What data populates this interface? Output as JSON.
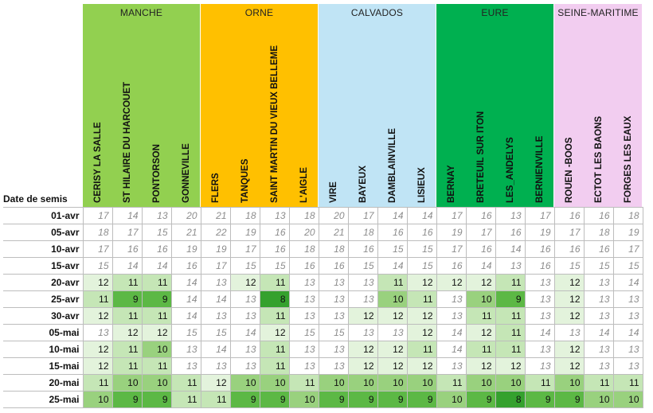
{
  "date_header": "Date de semis",
  "regions": [
    {
      "name": "MANCHE",
      "color": "#92d050",
      "stations": [
        "CERISY LA SALLE",
        "ST HILAIRE DU HARCOUET",
        "PONTORSON",
        "GONNEVILLE"
      ]
    },
    {
      "name": "ORNE",
      "color": "#ffc000",
      "stations": [
        "FLERS",
        "TANQUES",
        "SAINT MARTIN DU VIEUX BELLEME",
        "L'AIGLE"
      ]
    },
    {
      "name": "CALVADOS",
      "color": "#c0e4f5",
      "stations": [
        "VIRE",
        "BAYEUX",
        "DAMBLAINVILLE",
        "LISIEUX"
      ]
    },
    {
      "name": "EURE",
      "color": "#00b050",
      "stations": [
        "BERNAY",
        "BRETEUIL SUR ITON",
        "LES_ANDELYS",
        "BERNIENVILLE"
      ]
    },
    {
      "name": "SEINE-MARITIME",
      "color": "#f2cdf0",
      "stations": [
        "ROUEN -BOOS",
        "ECTOT LES BAONS",
        "FORGES LES EAUX"
      ]
    }
  ],
  "rows": [
    {
      "date": "01-avr",
      "values": [
        17,
        14,
        13,
        20,
        21,
        18,
        13,
        18,
        20,
        17,
        14,
        14,
        17,
        16,
        13,
        17,
        16,
        16,
        18
      ]
    },
    {
      "date": "05-avr",
      "values": [
        18,
        17,
        15,
        21,
        22,
        19,
        16,
        20,
        21,
        18,
        16,
        16,
        19,
        17,
        16,
        19,
        17,
        18,
        19
      ]
    },
    {
      "date": "10-avr",
      "values": [
        17,
        16,
        16,
        19,
        19,
        17,
        16,
        18,
        18,
        16,
        15,
        15,
        17,
        16,
        14,
        16,
        16,
        16,
        17
      ]
    },
    {
      "date": "15-avr",
      "values": [
        15,
        14,
        14,
        16,
        17,
        15,
        15,
        16,
        16,
        15,
        14,
        15,
        16,
        14,
        13,
        16,
        15,
        15,
        15
      ]
    },
    {
      "date": "20-avr",
      "values": [
        12,
        11,
        11,
        14,
        13,
        12,
        11,
        13,
        13,
        13,
        11,
        12,
        12,
        12,
        11,
        13,
        12,
        13,
        14
      ]
    },
    {
      "date": "25-avr",
      "values": [
        11,
        9,
        9,
        14,
        14,
        13,
        8,
        13,
        13,
        13,
        10,
        11,
        13,
        10,
        9,
        13,
        12,
        13,
        13
      ]
    },
    {
      "date": "30-avr",
      "values": [
        12,
        11,
        11,
        14,
        13,
        13,
        11,
        13,
        13,
        12,
        12,
        12,
        13,
        11,
        11,
        13,
        12,
        13,
        13
      ]
    },
    {
      "date": "05-mai",
      "values": [
        13,
        12,
        12,
        15,
        15,
        14,
        12,
        15,
        15,
        13,
        13,
        12,
        14,
        12,
        11,
        14,
        13,
        14,
        14
      ]
    },
    {
      "date": "10-mai",
      "values": [
        12,
        11,
        10,
        13,
        14,
        13,
        11,
        13,
        13,
        12,
        12,
        11,
        14,
        11,
        11,
        13,
        12,
        13,
        13
      ]
    },
    {
      "date": "15-mai",
      "values": [
        12,
        11,
        11,
        13,
        13,
        13,
        11,
        13,
        13,
        12,
        12,
        12,
        13,
        12,
        12,
        13,
        12,
        13,
        13
      ]
    },
    {
      "date": "20-mai",
      "values": [
        11,
        10,
        10,
        11,
        12,
        10,
        10,
        11,
        10,
        10,
        10,
        10,
        11,
        10,
        10,
        11,
        10,
        11,
        11
      ]
    },
    {
      "date": "25-mai",
      "values": [
        10,
        9,
        9,
        11,
        11,
        9,
        9,
        10,
        9,
        9,
        9,
        9,
        10,
        9,
        8,
        9,
        9,
        10,
        10
      ]
    }
  ],
  "styled_cells": {
    "bold_threshold": 12,
    "colors": {
      "c1": "#e3f3dc",
      "c2": "#c5e6b6",
      "c3": "#99d17e",
      "c4": "#5cb845",
      "c5": "#35a12e"
    }
  }
}
